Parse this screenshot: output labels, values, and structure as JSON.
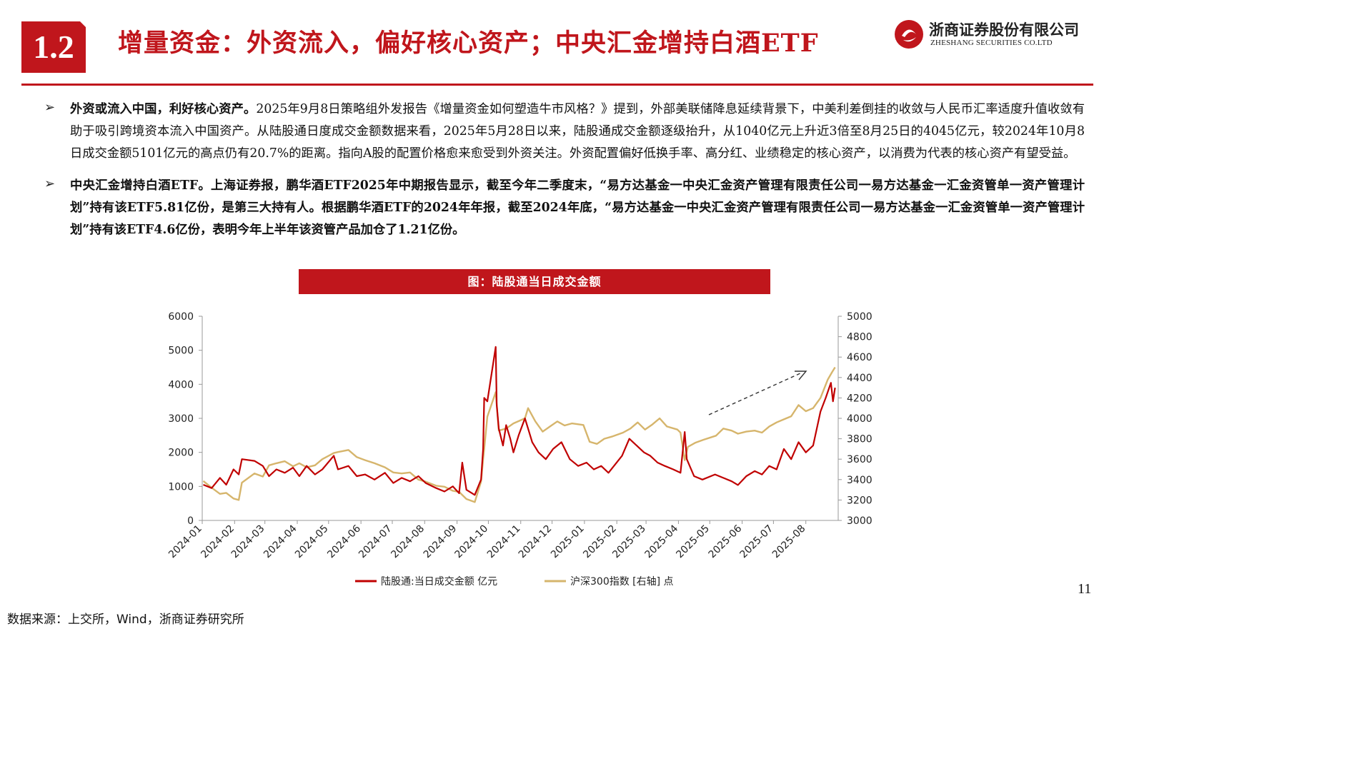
{
  "header": {
    "section_number": "1.2",
    "title": "增量资金：外资流入，偏好核心资产；中央汇金增持白酒ETF",
    "logo_cn": "浙商证券股份有限公司",
    "logo_en": "ZHESHANG SECURITIES CO.LTD",
    "brand_color": "#c0161c"
  },
  "bullets": [
    {
      "lead": "外资或流入中国，利好核心资产。",
      "body": "2025年9月8日策略组外发报告《增量资金如何塑造牛市风格？》提到，外部美联储降息延续背景下，中美利差倒挂的收敛与人民币汇率适度升值收敛有助于吸引跨境资本流入中国资产。从陆股通日度成交金额数据来看，2025年5月28日以来，陆股通成交金额逐级抬升，从1040亿元上升近3倍至8月25日的4045亿元，较2024年10月8日成交金额5101亿元的高点仍有20.7%的距离。指向A股的配置价格愈来愈受到外资关注。外资配置偏好低换手率、高分红、业绩稳定的核心资产，以消费为代表的核心资产有望受益。"
    },
    {
      "lead": "中央汇金增持白酒ETF。",
      "body": "上海证券报，鹏华酒ETF2025年中期报告显示，截至今年二季度末，“易方达基金一中央汇金资产管理有限责任公司一易方达基金一汇金资管单一资产管理计划”持有该ETF5.81亿份，是第三大持有人。根据鹏华酒ETF的2024年年报，截至2024年底，“易方达基金一中央汇金资产管理有限责任公司一易方达基金一汇金资管单一资产管理计划”持有该ETF4.6亿份，表明今年上半年该资管产品加仓了1.21亿份。"
    }
  ],
  "chart_banner": "图：陆股通当日成交金额",
  "chart_data": {
    "type": "line",
    "x_ticks": [
      "2024-01",
      "2024-02",
      "2024-03",
      "2024-04",
      "2024-05",
      "2024-06",
      "2024-07",
      "2024-08",
      "2024-09",
      "2024-10",
      "2024-11",
      "2024-12",
      "2025-01",
      "2025-02",
      "2025-03",
      "2025-04",
      "2025-05",
      "2025-06",
      "2025-07",
      "2025-08"
    ],
    "ylim_left": [
      0,
      6000
    ],
    "yticks_left": [
      "0",
      "1000",
      "2000",
      "3000",
      "4000",
      "5000",
      "6000"
    ],
    "ylim_right": [
      3000,
      5000
    ],
    "yticks_right": [
      "3000",
      "3200",
      "3400",
      "3600",
      "3800",
      "4000",
      "4200",
      "4400",
      "4600",
      "4800",
      "5000"
    ],
    "grid": false,
    "legend_position": "bottom",
    "series": [
      {
        "name": "陆股通:当日成交金额 亿元",
        "axis": "left",
        "color": "#c00000",
        "points": [
          [
            "2024-01-02",
            1050
          ],
          [
            "2024-01-10",
            950
          ],
          [
            "2024-01-18",
            1250
          ],
          [
            "2024-01-24",
            1050
          ],
          [
            "2024-01-31",
            1500
          ],
          [
            "2024-02-05",
            1350
          ],
          [
            "2024-02-08",
            1800
          ],
          [
            "2024-02-20",
            1750
          ],
          [
            "2024-02-28",
            1600
          ],
          [
            "2024-03-05",
            1300
          ],
          [
            "2024-03-12",
            1500
          ],
          [
            "2024-03-20",
            1400
          ],
          [
            "2024-03-28",
            1550
          ],
          [
            "2024-04-03",
            1300
          ],
          [
            "2024-04-10",
            1600
          ],
          [
            "2024-04-18",
            1350
          ],
          [
            "2024-04-25",
            1500
          ],
          [
            "2024-05-06",
            1900
          ],
          [
            "2024-05-10",
            1500
          ],
          [
            "2024-05-20",
            1600
          ],
          [
            "2024-05-28",
            1300
          ],
          [
            "2024-06-05",
            1350
          ],
          [
            "2024-06-14",
            1200
          ],
          [
            "2024-06-24",
            1400
          ],
          [
            "2024-07-02",
            1100
          ],
          [
            "2024-07-10",
            1250
          ],
          [
            "2024-07-18",
            1150
          ],
          [
            "2024-07-26",
            1300
          ],
          [
            "2024-08-02",
            1100
          ],
          [
            "2024-08-12",
            950
          ],
          [
            "2024-08-20",
            850
          ],
          [
            "2024-08-28",
            1000
          ],
          [
            "2024-09-03",
            800
          ],
          [
            "2024-09-06",
            1700
          ],
          [
            "2024-09-10",
            900
          ],
          [
            "2024-09-18",
            750
          ],
          [
            "2024-09-24",
            1200
          ],
          [
            "2024-09-26",
            2100
          ],
          [
            "2024-09-27",
            3600
          ],
          [
            "2024-09-30",
            3500
          ],
          [
            "2024-10-08",
            5101
          ],
          [
            "2024-10-09",
            3400
          ],
          [
            "2024-10-11",
            2700
          ],
          [
            "2024-10-15",
            2200
          ],
          [
            "2024-10-18",
            2800
          ],
          [
            "2024-10-22",
            2400
          ],
          [
            "2024-10-25",
            2000
          ],
          [
            "2024-10-30",
            2500
          ],
          [
            "2024-11-05",
            3000
          ],
          [
            "2024-11-08",
            2700
          ],
          [
            "2024-11-12",
            2300
          ],
          [
            "2024-11-18",
            2000
          ],
          [
            "2024-11-25",
            1800
          ],
          [
            "2024-12-02",
            2100
          ],
          [
            "2024-12-10",
            2300
          ],
          [
            "2024-12-18",
            1800
          ],
          [
            "2024-12-26",
            1600
          ],
          [
            "2025-01-03",
            1700
          ],
          [
            "2025-01-10",
            1500
          ],
          [
            "2025-01-17",
            1600
          ],
          [
            "2025-01-24",
            1400
          ],
          [
            "2025-02-06",
            1900
          ],
          [
            "2025-02-13",
            2400
          ],
          [
            "2025-02-20",
            2200
          ],
          [
            "2025-02-27",
            2000
          ],
          [
            "2025-03-05",
            1900
          ],
          [
            "2025-03-12",
            1700
          ],
          [
            "2025-03-19",
            1600
          ],
          [
            "2025-03-27",
            1500
          ],
          [
            "2025-04-03",
            1400
          ],
          [
            "2025-04-07",
            2600
          ],
          [
            "2025-04-09",
            1800
          ],
          [
            "2025-04-16",
            1300
          ],
          [
            "2025-04-24",
            1200
          ],
          [
            "2025-05-06",
            1350
          ],
          [
            "2025-05-14",
            1250
          ],
          [
            "2025-05-22",
            1150
          ],
          [
            "2025-05-28",
            1040
          ],
          [
            "2025-06-05",
            1300
          ],
          [
            "2025-06-13",
            1450
          ],
          [
            "2025-06-20",
            1350
          ],
          [
            "2025-06-27",
            1600
          ],
          [
            "2025-07-04",
            1500
          ],
          [
            "2025-07-11",
            2100
          ],
          [
            "2025-07-18",
            1800
          ],
          [
            "2025-07-25",
            2300
          ],
          [
            "2025-08-01",
            2000
          ],
          [
            "2025-08-08",
            2200
          ],
          [
            "2025-08-15",
            3200
          ],
          [
            "2025-08-20",
            3600
          ],
          [
            "2025-08-25",
            4045
          ],
          [
            "2025-08-27",
            3500
          ],
          [
            "2025-08-29",
            3900
          ]
        ]
      },
      {
        "name": "沪深300指数 [右轴] 点",
        "axis": "right",
        "color": "#d6b56c",
        "points": [
          [
            "2024-01-02",
            3386
          ],
          [
            "2024-01-10",
            3320
          ],
          [
            "2024-01-18",
            3260
          ],
          [
            "2024-01-24",
            3270
          ],
          [
            "2024-01-31",
            3215
          ],
          [
            "2024-02-05",
            3200
          ],
          [
            "2024-02-08",
            3370
          ],
          [
            "2024-02-20",
            3460
          ],
          [
            "2024-02-28",
            3430
          ],
          [
            "2024-03-05",
            3540
          ],
          [
            "2024-03-12",
            3560
          ],
          [
            "2024-03-20",
            3580
          ],
          [
            "2024-03-28",
            3530
          ],
          [
            "2024-04-03",
            3560
          ],
          [
            "2024-04-10",
            3520
          ],
          [
            "2024-04-18",
            3540
          ],
          [
            "2024-04-25",
            3600
          ],
          [
            "2024-05-06",
            3660
          ],
          [
            "2024-05-10",
            3670
          ],
          [
            "2024-05-20",
            3690
          ],
          [
            "2024-05-28",
            3620
          ],
          [
            "2024-06-05",
            3590
          ],
          [
            "2024-06-14",
            3560
          ],
          [
            "2024-06-24",
            3520
          ],
          [
            "2024-07-02",
            3470
          ],
          [
            "2024-07-10",
            3460
          ],
          [
            "2024-07-18",
            3470
          ],
          [
            "2024-07-26",
            3400
          ],
          [
            "2024-08-02",
            3380
          ],
          [
            "2024-08-12",
            3340
          ],
          [
            "2024-08-20",
            3330
          ],
          [
            "2024-08-28",
            3290
          ],
          [
            "2024-09-03",
            3280
          ],
          [
            "2024-09-10",
            3210
          ],
          [
            "2024-09-18",
            3180
          ],
          [
            "2024-09-24",
            3380
          ],
          [
            "2024-09-26",
            3600
          ],
          [
            "2024-09-27",
            3700
          ],
          [
            "2024-09-30",
            4017
          ],
          [
            "2024-10-08",
            4256
          ],
          [
            "2024-10-11",
            3880
          ],
          [
            "2024-10-18",
            3900
          ],
          [
            "2024-10-25",
            3950
          ],
          [
            "2024-11-05",
            4000
          ],
          [
            "2024-11-08",
            4100
          ],
          [
            "2024-11-15",
            3970
          ],
          [
            "2024-11-22",
            3870
          ],
          [
            "2024-11-29",
            3920
          ],
          [
            "2024-12-06",
            3970
          ],
          [
            "2024-12-13",
            3930
          ],
          [
            "2024-12-20",
            3950
          ],
          [
            "2024-12-31",
            3935
          ],
          [
            "2025-01-06",
            3770
          ],
          [
            "2025-01-13",
            3750
          ],
          [
            "2025-01-20",
            3800
          ],
          [
            "2025-01-27",
            3820
          ],
          [
            "2025-02-07",
            3860
          ],
          [
            "2025-02-14",
            3900
          ],
          [
            "2025-02-21",
            3960
          ],
          [
            "2025-02-28",
            3890
          ],
          [
            "2025-03-07",
            3940
          ],
          [
            "2025-03-14",
            4000
          ],
          [
            "2025-03-21",
            3920
          ],
          [
            "2025-03-31",
            3890
          ],
          [
            "2025-04-03",
            3860
          ],
          [
            "2025-04-07",
            3590
          ],
          [
            "2025-04-10",
            3720
          ],
          [
            "2025-04-17",
            3760
          ],
          [
            "2025-04-25",
            3790
          ],
          [
            "2025-05-07",
            3830
          ],
          [
            "2025-05-14",
            3900
          ],
          [
            "2025-05-22",
            3880
          ],
          [
            "2025-05-28",
            3850
          ],
          [
            "2025-06-05",
            3870
          ],
          [
            "2025-06-13",
            3880
          ],
          [
            "2025-06-20",
            3860
          ],
          [
            "2025-06-27",
            3920
          ],
          [
            "2025-07-04",
            3960
          ],
          [
            "2025-07-11",
            3990
          ],
          [
            "2025-07-18",
            4020
          ],
          [
            "2025-07-25",
            4130
          ],
          [
            "2025-08-01",
            4070
          ],
          [
            "2025-08-08",
            4100
          ],
          [
            "2025-08-15",
            4200
          ],
          [
            "2025-08-22",
            4380
          ],
          [
            "2025-08-26",
            4450
          ],
          [
            "2025-08-29",
            4500
          ]
        ]
      }
    ]
  },
  "page_number": "11",
  "source": "数据来源：上交所，Wind，浙商证券研究所"
}
